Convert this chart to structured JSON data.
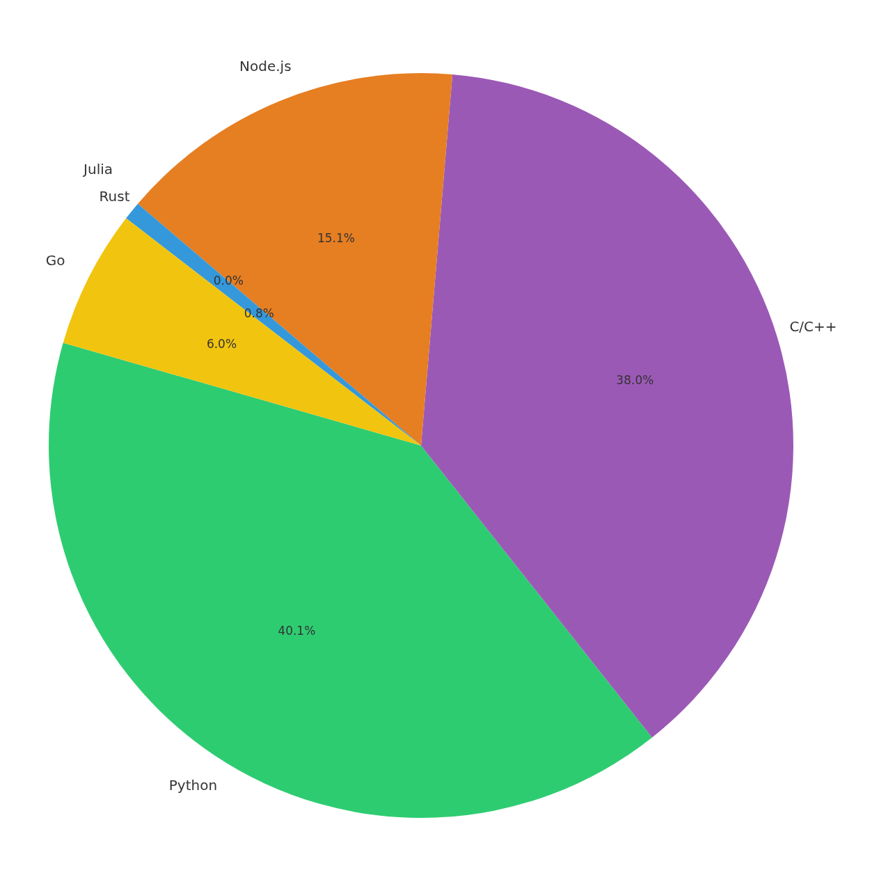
{
  "chart_data": {
    "type": "pie",
    "categories": [
      "Python",
      "C/C++",
      "Node.js",
      "Julia",
      "Rust",
      "Go"
    ],
    "values": [
      40.1,
      38.0,
      15.1,
      0.0,
      0.8,
      6.0
    ],
    "colors": [
      "#2ecc71",
      "#9b59b6",
      "#e67e22",
      "#e74c3c",
      "#3498db",
      "#f1c40f"
    ],
    "value_labels": [
      "40.1%",
      "38.0%",
      "15.1%",
      "0.0%",
      "0.8%",
      "6.0%"
    ]
  }
}
